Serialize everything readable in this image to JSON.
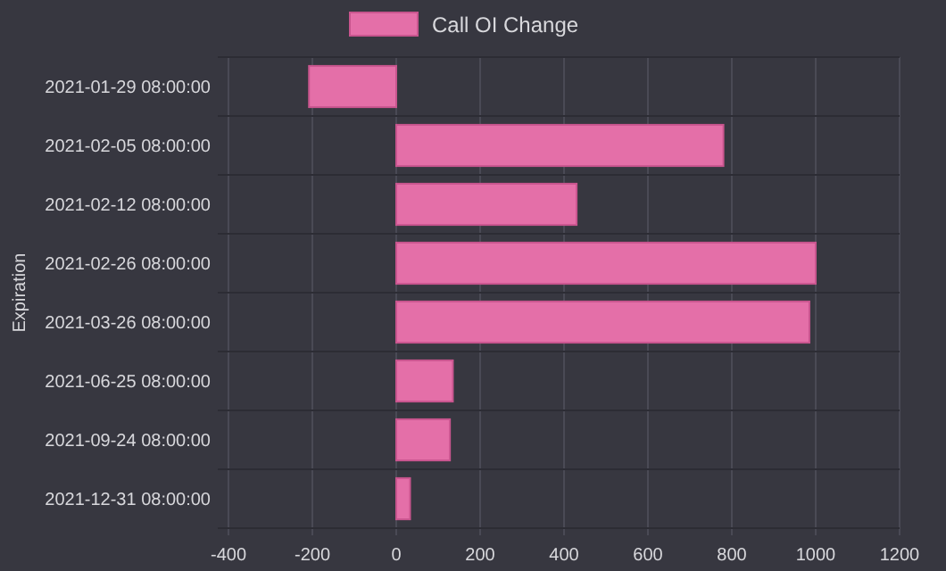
{
  "chart_data": {
    "type": "bar",
    "orientation": "horizontal",
    "ylabel": "Expiration",
    "legend": "top",
    "categories": [
      "2021-01-29 08:00:00",
      "2021-02-05 08:00:00",
      "2021-02-12 08:00:00",
      "2021-02-26 08:00:00",
      "2021-03-26 08:00:00",
      "2021-06-25 08:00:00",
      "2021-09-24 08:00:00",
      "2021-12-31 08:00:00"
    ],
    "series": [
      {
        "name": "Call OI Change",
        "color": "#e46fa8",
        "values": [
          -208,
          780,
          430,
          1000,
          985,
          135,
          128,
          33
        ]
      }
    ],
    "xlim": [
      -400,
      1200
    ],
    "xticks": [
      -400,
      -200,
      0,
      200,
      400,
      600,
      800,
      1000,
      1200
    ],
    "grid": true
  }
}
